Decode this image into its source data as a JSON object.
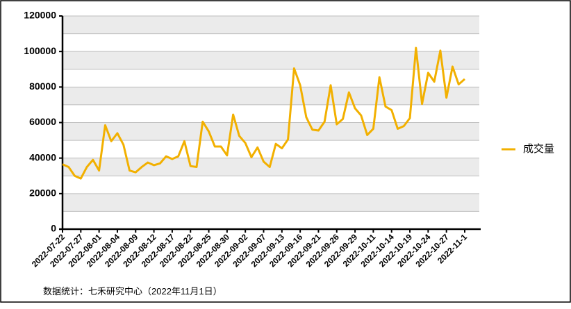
{
  "chart_data": {
    "type": "line",
    "categories": [
      "2022-07-22",
      null,
      null,
      "2022-07-27",
      null,
      null,
      "2022-08-01",
      null,
      null,
      "2022-08-04",
      null,
      null,
      "2022-08-09",
      null,
      null,
      "2022-08-12",
      null,
      null,
      "2022-08-17",
      null,
      null,
      "2022-08-22",
      null,
      null,
      "2022-08-25",
      null,
      null,
      "2022-08-30",
      null,
      null,
      "2022-09-02",
      null,
      null,
      "2022-09-07",
      null,
      null,
      "2022-09-13",
      null,
      null,
      "2022-09-16",
      null,
      null,
      "2022-09-21",
      null,
      null,
      "2022-09-26",
      null,
      null,
      "2022-09-29",
      null,
      null,
      "2022-10-11",
      null,
      null,
      "2022-10-14",
      null,
      null,
      "2022-10-19",
      null,
      null,
      "2022-10-24",
      null,
      null,
      "2022-10-27",
      null,
      null,
      "2022-11-1"
    ],
    "series": [
      {
        "name": "成交量",
        "color": "#f2b000",
        "values": [
          36500,
          35000,
          30000,
          28500,
          35000,
          39000,
          33000,
          58500,
          49500,
          54000,
          47500,
          33000,
          32000,
          35000,
          37500,
          36000,
          37000,
          41000,
          39500,
          41000,
          49500,
          35500,
          35000,
          60500,
          55000,
          46500,
          46500,
          41500,
          64500,
          52500,
          48500,
          40500,
          46000,
          38000,
          35000,
          48000,
          45500,
          50500,
          90500,
          81000,
          63000,
          56000,
          55500,
          60500,
          81000,
          59000,
          62000,
          77000,
          68000,
          64000,
          53000,
          56500,
          85500,
          69000,
          67000,
          56500,
          58000,
          62500,
          102000,
          70500,
          88000,
          83000,
          100500,
          74000,
          91500,
          81500,
          84500
        ]
      }
    ],
    "ylim": [
      0,
      120000
    ],
    "yticks": [
      0,
      20000,
      40000,
      60000,
      80000,
      100000,
      120000
    ],
    "grid": true,
    "legend": "right",
    "source": "数据统计：七禾研究中心（2022年11月1日）"
  }
}
